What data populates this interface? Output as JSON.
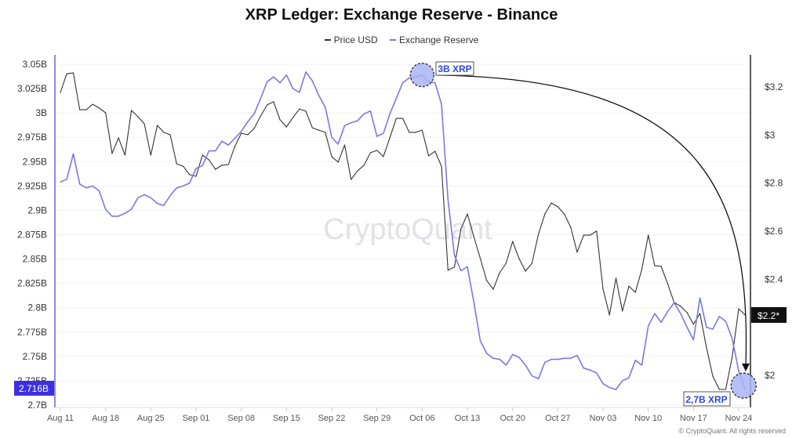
{
  "chart_data": {
    "type": "line",
    "title": "XRP Ledger: Exchange Reserve - Binance",
    "x_start": "Aug 11",
    "x_end": "Nov 25",
    "x_tick_labels": [
      "Aug 11",
      "Aug 18",
      "Aug 25",
      "Sep 01",
      "Sep 08",
      "Sep 15",
      "Sep 22",
      "Sep 29",
      "Oct 06",
      "Oct 13",
      "Oct 20",
      "Oct 27",
      "Nov 03",
      "Nov 10",
      "Nov 17",
      "Nov 24"
    ],
    "y_left": {
      "ticks": [
        "3.05B",
        "3.025B",
        "3B",
        "2.975B",
        "2.95B",
        "2.925B",
        "2.9B",
        "2.875B",
        "2.85B",
        "2.825B",
        "2.8B",
        "2.775B",
        "2.75B",
        "2.725B",
        "2.7B"
      ],
      "range": [
        2.7,
        3.05
      ],
      "unit": "B"
    },
    "y_right": {
      "ticks": [
        "$3.2",
        "$3",
        "$2.8",
        "$2.6",
        "$2.4",
        "$2"
      ],
      "range": [
        1.9,
        3.3
      ]
    },
    "grid": true,
    "legend_placement": "top-center",
    "series": [
      {
        "name": "Price USD",
        "axis": "right",
        "color": "#333333",
        "values": [
          3.174,
          3.252,
          3.255,
          3.102,
          3.102,
          3.125,
          3.109,
          3.089,
          2.92,
          2.985,
          2.913,
          3.099,
          3.073,
          3.043,
          2.913,
          3.037,
          3.008,
          2.998,
          2.877,
          2.867,
          2.832,
          2.825,
          2.913,
          2.893,
          2.854,
          2.871,
          2.874,
          2.949,
          3.004,
          2.998,
          3.024,
          3.076,
          3.122,
          3.135,
          3.06,
          3.03,
          3.07,
          3.105,
          3.096,
          3.027,
          3.017,
          3.008,
          2.907,
          2.884,
          2.955,
          2.812,
          2.848,
          2.871,
          2.923,
          2.933,
          2.907,
          2.985,
          3.066,
          3.066,
          3.008,
          3.008,
          3.017,
          2.91,
          2.929,
          2.867,
          2.434,
          2.447,
          2.606,
          2.668,
          2.574,
          2.483,
          2.391,
          2.355,
          2.424,
          2.463,
          2.554,
          2.483,
          2.43,
          2.463,
          2.584,
          2.668,
          2.714,
          2.698,
          2.668,
          2.613,
          2.509,
          2.58,
          2.58,
          2.597,
          2.355,
          2.248,
          2.401,
          2.264,
          2.368,
          2.342,
          2.437,
          2.58,
          2.453,
          2.45,
          2.378,
          2.3,
          2.284,
          2.258,
          2.209,
          2.254,
          2.114,
          1.993,
          1.938,
          1.938,
          2.075,
          2.274,
          2.248
        ]
      },
      {
        "name": "Exchange Reserve",
        "axis": "left",
        "color": "#7b78e6",
        "values": [
          2.929,
          2.932,
          2.958,
          2.927,
          2.923,
          2.925,
          2.92,
          2.901,
          2.894,
          2.894,
          2.897,
          2.901,
          2.913,
          2.916,
          2.913,
          2.907,
          2.905,
          2.915,
          2.923,
          2.925,
          2.928,
          2.943,
          2.946,
          2.961,
          2.961,
          2.971,
          2.967,
          2.974,
          2.981,
          2.991,
          2.999,
          3.015,
          3.032,
          3.037,
          3.031,
          3.039,
          3.025,
          3.021,
          3.042,
          3.033,
          3.018,
          3.006,
          2.975,
          2.968,
          2.987,
          2.99,
          2.992,
          2.999,
          3.002,
          2.976,
          2.979,
          2.999,
          3.015,
          3.031,
          3.036,
          3.037,
          3.039,
          3.032,
          3.031,
          3.009,
          2.911,
          2.854,
          2.838,
          2.842,
          2.806,
          2.766,
          2.753,
          2.748,
          2.747,
          2.741,
          2.752,
          2.749,
          2.741,
          2.73,
          2.727,
          2.744,
          2.747,
          2.747,
          2.748,
          2.748,
          2.751,
          2.738,
          2.736,
          2.733,
          2.722,
          2.718,
          2.716,
          2.725,
          2.728,
          2.746,
          2.741,
          2.781,
          2.794,
          2.785,
          2.796,
          2.805,
          2.794,
          2.78,
          2.767,
          2.81,
          2.78,
          2.778,
          2.791,
          2.786,
          2.768,
          2.735,
          2.716
        ]
      }
    ],
    "current_labels": {
      "price": "$2.2*",
      "reserve": "2.716B"
    },
    "annotations": [
      {
        "text": "3B XRP",
        "at_index": 56
      },
      {
        "text": "2,7B XRP",
        "at_index": 106
      }
    ],
    "watermark": "CryptoQuant"
  },
  "footer": "© CryptoQuant. All rights reserved",
  "colors": {
    "reserve": "#7b78e6",
    "price": "#333333",
    "tag_reserve": "#3d2fe0",
    "annotation_text": "#2b47e0",
    "highlight": "#a9b4f5"
  }
}
